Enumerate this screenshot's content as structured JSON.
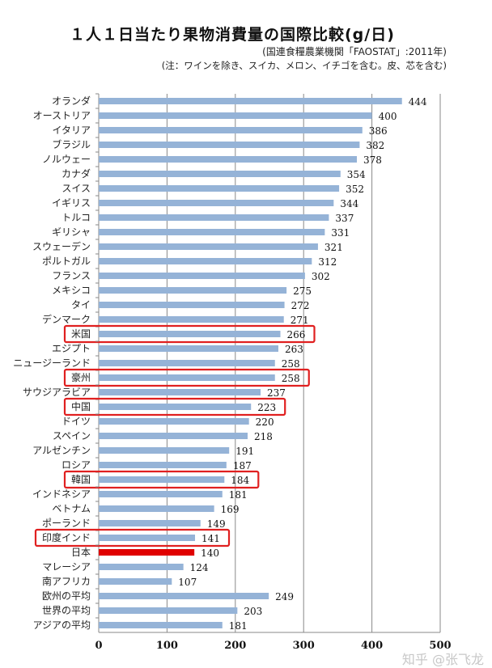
{
  "chart_data": {
    "type": "bar",
    "orientation": "horizontal",
    "title": "１人１日当たり果物消費量の国際比較(g/日)",
    "subtitle": "(国連食糧農業機関「FAOSTAT」:2011年)",
    "note": "(注：ワインを除き、スイカ、メロン、イチゴを含む。皮、芯を含む)",
    "xlim": [
      0,
      500
    ],
    "xticks": [
      "0",
      "100",
      "200",
      "300",
      "400",
      "500"
    ],
    "grid": true,
    "bar_color": "#95b3d7",
    "highlight_bar_color": "#e00000",
    "box_color": "#e02020",
    "categories": [
      "オランダ",
      "オーストリア",
      "イタリア",
      "ブラジル",
      "ノルウェー",
      "カナダ",
      "スイス",
      "イギリス",
      "トルコ",
      "ギリシャ",
      "スウェーデン",
      "ポルトガル",
      "フランス",
      "メキシコ",
      "タイ",
      "デンマーク",
      "米国",
      "エジプト",
      "ニュージーランド",
      "豪州",
      "サウジアラビア",
      "中国",
      "ドイツ",
      "スペイン",
      "アルゼンチン",
      "ロシア",
      "韓国",
      "インドネシア",
      "ベトナム",
      "ポーランド",
      "印度インド",
      "日本",
      "マレーシア",
      "南アフリカ",
      "欧州の平均",
      "世界の平均",
      "アジアの平均"
    ],
    "values": [
      444,
      400,
      386,
      382,
      378,
      354,
      352,
      344,
      337,
      331,
      321,
      312,
      302,
      275,
      272,
      271,
      266,
      263,
      258,
      258,
      237,
      223,
      220,
      218,
      191,
      187,
      184,
      181,
      169,
      149,
      141,
      140,
      124,
      107,
      249,
      203,
      181
    ],
    "boxed": [
      "米国",
      "豪州",
      "中国",
      "韓国",
      "印度インド"
    ],
    "highlighted": [
      "日本"
    ]
  },
  "watermark": "知乎 @张飞龙"
}
